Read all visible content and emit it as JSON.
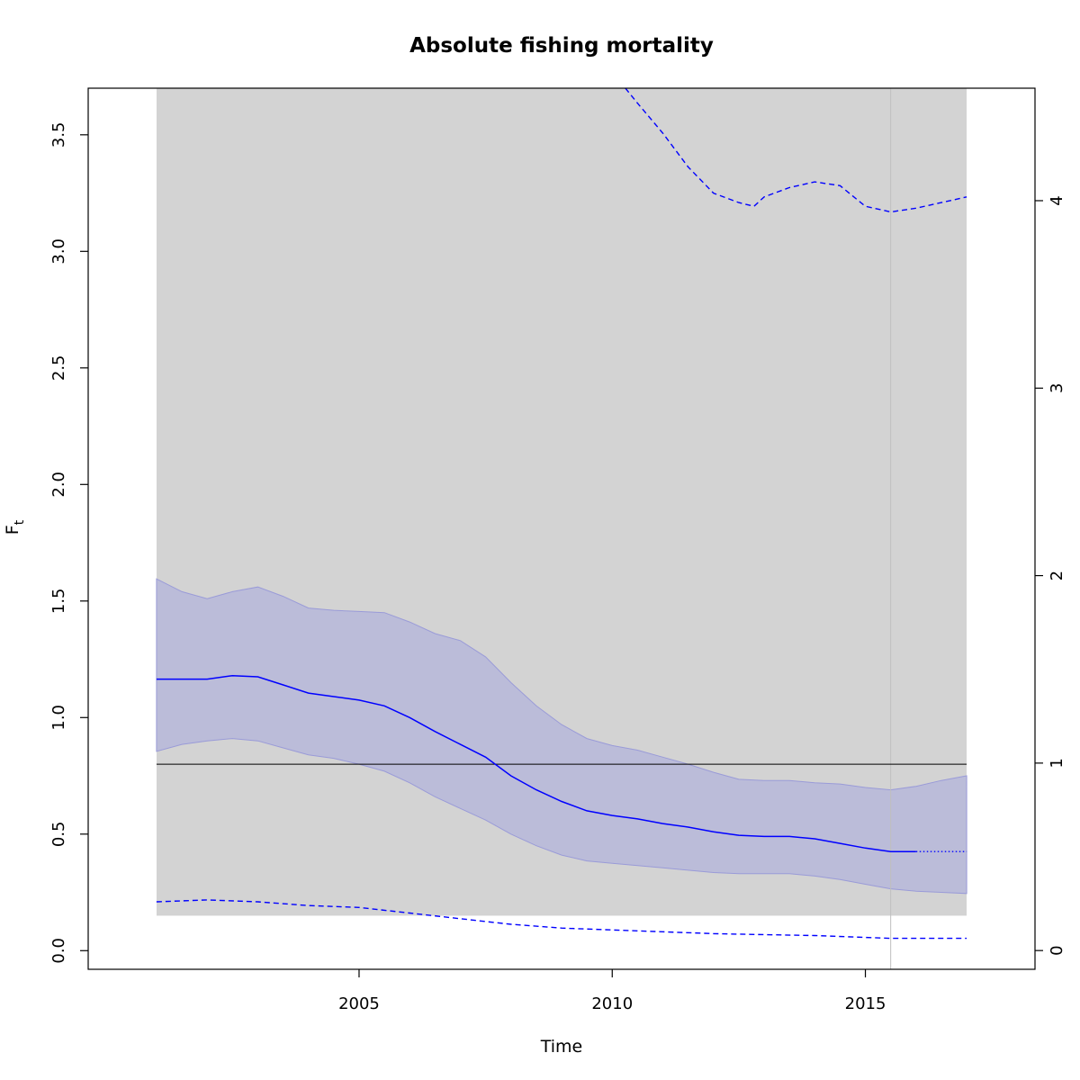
{
  "chart_data": {
    "type": "line",
    "title": "Absolute fishing mortality",
    "xlabel": "Time",
    "ylabel": "F",
    "ylabel_subscript": "t",
    "xlim": [
      1999.65,
      2018.35
    ],
    "ylim": [
      -0.08,
      3.7
    ],
    "y2lim": [
      -0.1,
      4.6
    ],
    "x_ticks": [
      2005,
      2010,
      2015
    ],
    "y_ticks": [
      0.0,
      0.5,
      1.0,
      1.5,
      2.0,
      2.5,
      3.0,
      3.5
    ],
    "y_tick_labels": [
      "0.0",
      "0.5",
      "1.0",
      "1.5",
      "2.0",
      "2.5",
      "3.0",
      "3.5"
    ],
    "y2_ticks": [
      0,
      1,
      2,
      3,
      4
    ],
    "y2_tick_labels": [
      "0",
      "1",
      "2",
      "3",
      "4"
    ],
    "grid": false,
    "colors": {
      "estimate": "#0000ff",
      "ci_fill": "#bbbcd9",
      "ci_border": "#9a9bd8",
      "shade": "#d3d3d3",
      "reference": "#000000",
      "vline": "#bebebe"
    },
    "shaded_region": {
      "x": [
        2001,
        2017
      ],
      "y": [
        0.15,
        3.7
      ]
    },
    "reference_line": {
      "y": 0.8,
      "x": [
        2001,
        2017
      ]
    },
    "vertical_line": {
      "x": 2015.5
    },
    "estimate": {
      "x": [
        2001.0,
        2001.5,
        2002.0,
        2002.5,
        2003.0,
        2003.5,
        2004.0,
        2004.5,
        2005.0,
        2005.5,
        2006.0,
        2006.5,
        2007.0,
        2007.5,
        2008.0,
        2008.5,
        2009.0,
        2009.5,
        2010.0,
        2010.5,
        2011.0,
        2011.5,
        2012.0,
        2012.5,
        2013.0,
        2013.5,
        2014.0,
        2014.5,
        2015.0,
        2015.5,
        2016.0
      ],
      "y": [
        1.165,
        1.165,
        1.165,
        1.18,
        1.175,
        1.14,
        1.105,
        1.09,
        1.075,
        1.05,
        1.0,
        0.94,
        0.885,
        0.83,
        0.75,
        0.69,
        0.64,
        0.6,
        0.58,
        0.565,
        0.545,
        0.53,
        0.51,
        0.495,
        0.49,
        0.49,
        0.48,
        0.46,
        0.44,
        0.425,
        0.425
      ]
    },
    "estimate_projection": {
      "x": [
        2016.0,
        2017.0
      ],
      "y": [
        0.425,
        0.425
      ]
    },
    "ci": {
      "x": [
        2001.0,
        2001.5,
        2002.0,
        2002.5,
        2003.0,
        2003.5,
        2004.0,
        2004.5,
        2005.0,
        2005.5,
        2006.0,
        2006.5,
        2007.0,
        2007.5,
        2008.0,
        2008.5,
        2009.0,
        2009.5,
        2010.0,
        2010.5,
        2011.0,
        2011.5,
        2012.0,
        2012.5,
        2013.0,
        2013.5,
        2014.0,
        2014.5,
        2015.0,
        2015.5,
        2016.0,
        2016.5,
        2017.0
      ],
      "lower": [
        0.855,
        0.885,
        0.9,
        0.91,
        0.9,
        0.87,
        0.84,
        0.825,
        0.8,
        0.77,
        0.72,
        0.66,
        0.61,
        0.56,
        0.5,
        0.45,
        0.41,
        0.385,
        0.375,
        0.365,
        0.355,
        0.345,
        0.335,
        0.33,
        0.33,
        0.33,
        0.32,
        0.305,
        0.285,
        0.265,
        0.255,
        0.25,
        0.245
      ],
      "upper": [
        1.595,
        1.54,
        1.51,
        1.54,
        1.56,
        1.52,
        1.47,
        1.46,
        1.455,
        1.45,
        1.41,
        1.36,
        1.33,
        1.26,
        1.15,
        1.05,
        0.97,
        0.91,
        0.88,
        0.86,
        0.83,
        0.8,
        0.765,
        0.735,
        0.73,
        0.73,
        0.72,
        0.715,
        0.7,
        0.69,
        0.705,
        0.73,
        0.75
      ]
    },
    "secondary_upper": {
      "x": [
        2010.26,
        2010.5,
        2011.0,
        2011.5,
        2012.0,
        2012.5,
        2012.8,
        2013.0,
        2013.5,
        2014.0,
        2014.5,
        2015.0,
        2015.5,
        2016.0,
        2016.5,
        2017.0
      ],
      "y": [
        4.6,
        4.52,
        4.36,
        4.18,
        4.04,
        3.99,
        3.97,
        4.02,
        4.07,
        4.1,
        4.08,
        3.97,
        3.94,
        3.96,
        3.99,
        4.02
      ]
    },
    "secondary_lower": {
      "x": [
        2001.0,
        2002.0,
        2003.0,
        2004.0,
        2005.0,
        2006.0,
        2007.0,
        2008.0,
        2009.0,
        2010.0,
        2011.0,
        2012.0,
        2013.0,
        2014.0,
        2015.0,
        2015.5,
        2016.0,
        2017.0
      ],
      "y": [
        0.26,
        0.27,
        0.26,
        0.24,
        0.23,
        0.2,
        0.17,
        0.14,
        0.12,
        0.11,
        0.1,
        0.09,
        0.085,
        0.08,
        0.07,
        0.065,
        0.065,
        0.065
      ]
    }
  }
}
